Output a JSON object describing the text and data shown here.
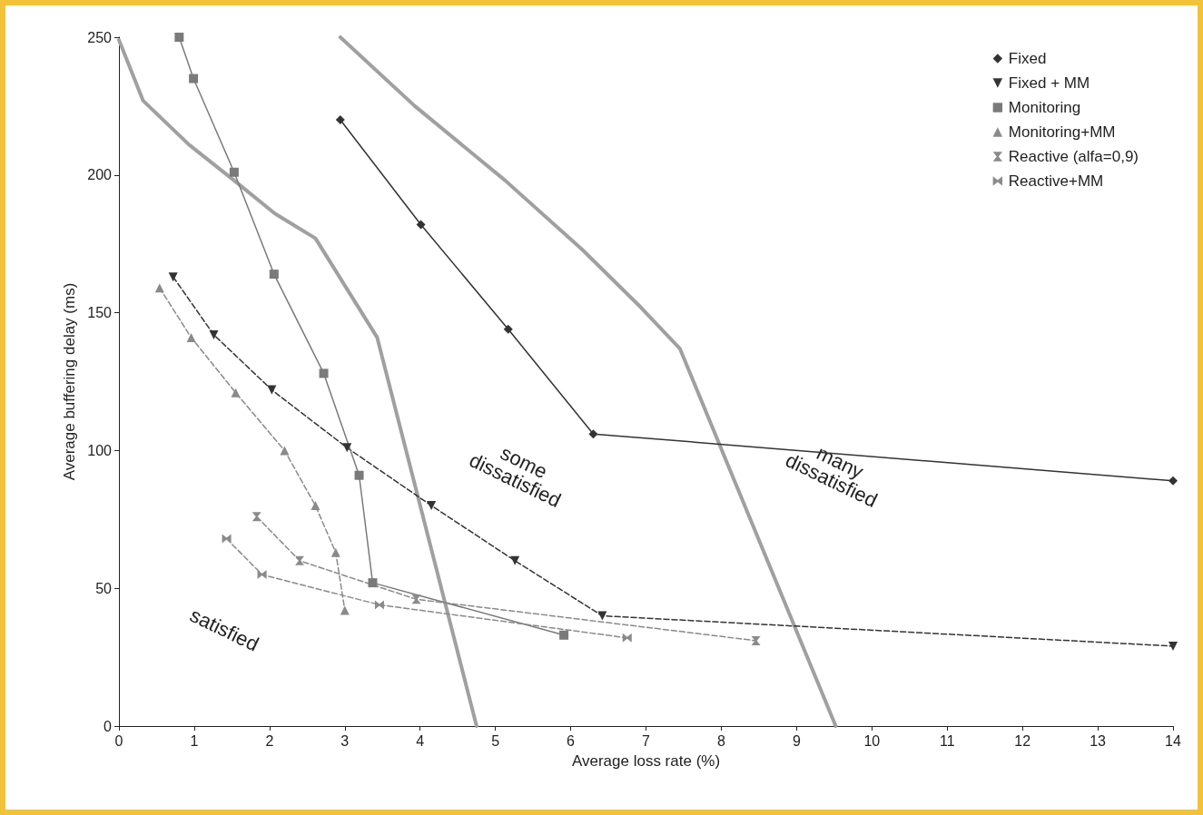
{
  "chart_data": {
    "type": "line",
    "xlabel": "Average loss rate (%)",
    "ylabel": "Average buffering delay (ms)",
    "xlim": [
      0,
      14
    ],
    "xticks": [
      0,
      1,
      2,
      3,
      4,
      5,
      6,
      7,
      8,
      9,
      10,
      11,
      12,
      13,
      14
    ],
    "ylim": [
      0,
      250
    ],
    "yticks": [
      0,
      50,
      100,
      150,
      200,
      250
    ],
    "grid": false,
    "legend": "top right",
    "series": [
      {
        "name": "Fixed",
        "color": "#333333",
        "marker": "diamond",
        "line_style": "solid",
        "x": [
          2.94,
          4.01,
          5.17,
          6.3,
          14
        ],
        "values": [
          220,
          182,
          144,
          106,
          89
        ]
      },
      {
        "name": "Fixed + MM",
        "color": "#333333",
        "marker": "triangle-down",
        "line_style": "dashed",
        "x": [
          0.72,
          1.26,
          2.03,
          3.03,
          4.15,
          5.26,
          6.42,
          14
        ],
        "values": [
          163,
          142,
          122,
          101,
          80,
          60,
          40,
          29
        ]
      },
      {
        "name": "Monitoring",
        "color": "#7a7a7a",
        "marker": "square",
        "line_style": "solid",
        "x": [
          0.8,
          0.99,
          1.53,
          2.06,
          2.72,
          3.19,
          3.37,
          5.91
        ],
        "values": [
          250,
          235,
          201,
          164,
          128,
          91,
          52,
          33
        ]
      },
      {
        "name": "Monitoring+MM",
        "color": "#8a8a8a",
        "marker": "triangle",
        "line_style": "dashed",
        "x": [
          0.54,
          0.96,
          1.55,
          2.2,
          2.61,
          2.88,
          3.0
        ],
        "values": [
          159,
          141,
          121,
          100,
          80,
          63,
          42
        ]
      },
      {
        "name": "Reactive (alfa=0,9)",
        "color": "#8a8a8a",
        "marker": "cross",
        "line_style": "dashed",
        "x": [
          1.83,
          2.4,
          3.95,
          8.46
        ],
        "values": [
          76,
          60,
          46,
          31
        ]
      },
      {
        "name": "Reactive+MM",
        "color": "#8a8a8a",
        "marker": "star",
        "line_style": "dashed",
        "x": [
          1.43,
          1.9,
          3.46,
          6.75
        ],
        "values": [
          68,
          55,
          44,
          32
        ]
      },
      {
        "color": "#a0a0a0",
        "marker": "none",
        "line_style": "solid",
        "x": [
          0,
          0.32,
          0.93,
          1.53,
          2.07,
          2.61,
          3.43,
          4.75
        ],
        "values": [
          249,
          227,
          211,
          198,
          186,
          177,
          141,
          0
        ]
      },
      {
        "color": "#a0a0a0",
        "marker": "none",
        "line_style": "solid",
        "x": [
          2.94,
          3.93,
          5.13,
          6.15,
          6.93,
          7.45,
          9.52
        ],
        "values": [
          250,
          225,
          198,
          173,
          152,
          137,
          0
        ]
      }
    ],
    "annotations": [
      "satisfied",
      "some\ndissatisfied",
      "many\ndissatisfied"
    ]
  }
}
